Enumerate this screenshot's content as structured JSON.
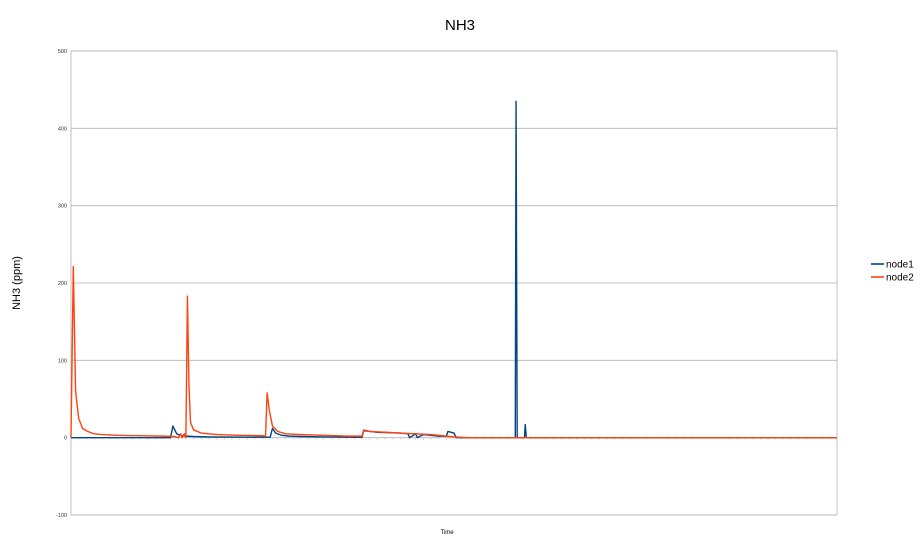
{
  "chart_data": {
    "type": "line",
    "title": "NH3",
    "xlabel": "Time",
    "ylabel": "NH3 (ppm)",
    "ylim": [
      -100,
      500
    ],
    "yticks": [
      -100,
      0,
      100,
      200,
      300,
      400,
      500
    ],
    "grid": true,
    "legend_position": "right",
    "x_count": 101,
    "series": [
      {
        "name": "node1",
        "color": "#004586",
        "points": [
          [
            0,
            0
          ],
          [
            13,
            0
          ],
          [
            13.3,
            15
          ],
          [
            13.8,
            5
          ],
          [
            14.3,
            3
          ],
          [
            15,
            2
          ],
          [
            16,
            1.5
          ],
          [
            18,
            1
          ],
          [
            21,
            0.8
          ],
          [
            26,
            0.6
          ],
          [
            26.3,
            12
          ],
          [
            26.7,
            6
          ],
          [
            27.5,
            3
          ],
          [
            28.5,
            2
          ],
          [
            30,
            1.5
          ],
          [
            33,
            1
          ],
          [
            35,
            0.8
          ],
          [
            38,
            0.5
          ],
          [
            38.2,
            9
          ],
          [
            40,
            7
          ],
          [
            43,
            6
          ],
          [
            44,
            5
          ],
          [
            44.2,
            0
          ],
          [
            45,
            5
          ],
          [
            45.2,
            0
          ],
          [
            46,
            4
          ],
          [
            47,
            3
          ],
          [
            48,
            2
          ],
          [
            49,
            2
          ],
          [
            49.2,
            8
          ],
          [
            50,
            6
          ],
          [
            50.3,
            0
          ],
          [
            58,
            0
          ],
          [
            58.1,
            435
          ],
          [
            58.25,
            0
          ],
          [
            59.2,
            0
          ],
          [
            59.3,
            17
          ],
          [
            59.45,
            0
          ],
          [
            100,
            0
          ]
        ]
      },
      {
        "name": "node2",
        "color": "#ff420e",
        "points": [
          [
            0,
            0
          ],
          [
            0.3,
            221
          ],
          [
            0.6,
            60
          ],
          [
            1,
            25
          ],
          [
            1.5,
            12
          ],
          [
            2.2,
            8
          ],
          [
            3,
            5
          ],
          [
            4,
            4
          ],
          [
            6,
            3
          ],
          [
            9,
            2.5
          ],
          [
            12,
            2
          ],
          [
            13.5,
            1.5
          ],
          [
            14,
            0
          ],
          [
            14.3,
            5
          ],
          [
            14.5,
            0
          ],
          [
            14.8,
            5
          ],
          [
            15,
            0
          ],
          [
            15.2,
            183
          ],
          [
            15.4,
            68
          ],
          [
            15.6,
            20
          ],
          [
            16,
            10
          ],
          [
            17,
            6
          ],
          [
            19,
            4
          ],
          [
            22,
            3
          ],
          [
            25,
            2.5
          ],
          [
            25.4,
            2
          ],
          [
            25.6,
            58
          ],
          [
            25.9,
            35
          ],
          [
            26.3,
            15
          ],
          [
            27,
            8
          ],
          [
            28,
            5
          ],
          [
            30,
            4
          ],
          [
            33,
            3
          ],
          [
            36,
            2
          ],
          [
            38,
            2
          ],
          [
            38.2,
            10
          ],
          [
            39,
            8
          ],
          [
            41,
            7
          ],
          [
            43,
            6
          ],
          [
            45,
            5
          ],
          [
            47,
            4
          ],
          [
            48,
            3
          ],
          [
            49,
            2
          ],
          [
            50,
            1
          ],
          [
            52,
            0
          ],
          [
            100,
            0
          ]
        ]
      }
    ]
  }
}
